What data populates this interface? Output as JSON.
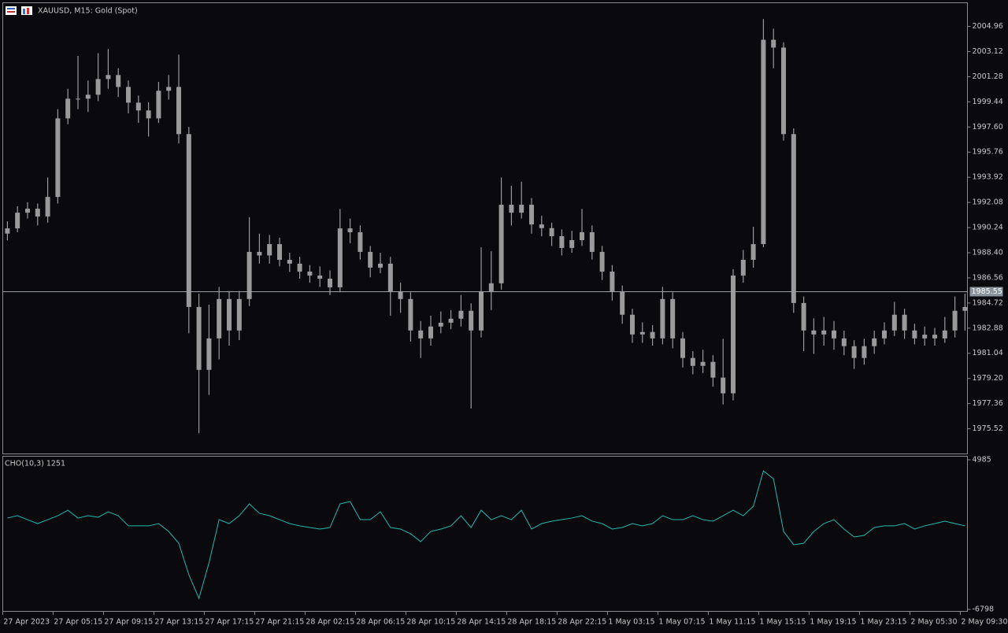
{
  "chart_data": [
    {
      "type": "candlestick",
      "title": "XAUUSD, M15:  Gold (Spot)",
      "color": "#9a9a9a",
      "categories": [
        "27 Apr 2023",
        null,
        null,
        null,
        null,
        "27 Apr 05:15",
        null,
        null,
        null,
        null,
        "27 Apr 09:15",
        null,
        null,
        null,
        null,
        "27 Apr 13:15",
        null,
        null,
        null,
        null,
        "27 Apr 17:15",
        null,
        null,
        null,
        null,
        "27 Apr 21:15",
        null,
        null,
        null,
        null,
        "28 Apr 02:15",
        null,
        null,
        null,
        null,
        "28 Apr 06:15",
        null,
        null,
        null,
        null,
        "28 Apr 10:15",
        null,
        null,
        null,
        null,
        "28 Apr 14:15",
        null,
        null,
        null,
        null,
        "28 Apr 18:15",
        null,
        null,
        null,
        null,
        "28 Apr 22:15",
        null,
        null,
        null,
        null,
        "1 May 03:15",
        null,
        null,
        null,
        null,
        "1 May 07:15",
        null,
        null,
        null,
        null,
        "1 May 11:15",
        null,
        null,
        null,
        null,
        "1 May 15:15",
        null,
        null,
        null,
        null,
        "1 May 19:15",
        null,
        null,
        null,
        null,
        "1 May 23:15",
        null,
        null,
        null,
        null,
        "2 May 05:30",
        null,
        null,
        null,
        null,
        "2 May 09:30"
      ],
      "open": [
        1989.8,
        1990.18,
        1991.33,
        1991.62,
        1991.05,
        1992.48,
        1998.23,
        1999.67,
        1999.67,
        1999.96,
        2001.11,
        2001.4,
        2000.53,
        1999.38,
        1998.81,
        1998.23,
        2000.25,
        2000.53,
        1997.08,
        1984.43,
        1979.83,
        1982.13,
        1985.01,
        1982.71,
        1985.01,
        1988.46,
        1988.2,
        1989.03,
        1987.88,
        1987.6,
        1987.02,
        1986.73,
        1986.5,
        1985.87,
        1990.18,
        1989.9,
        1988.46,
        1987.31,
        1987.6,
        1985.58,
        1985.01,
        1982.71,
        1982.13,
        1983.0,
        1983.28,
        1983.57,
        1984.15,
        1982.71,
        1985.58,
        1986.16,
        1991.91,
        1991.33,
        1991.91,
        1990.47,
        1990.2,
        1989.61,
        1988.75,
        1989.32,
        1989.9,
        1988.46,
        1987.02,
        1985.58,
        1983.86,
        1982.42,
        1982.6,
        1982.13,
        1985.01,
        1982.13,
        1980.7,
        1980.12,
        1980.41,
        1979.26,
        1978.11,
        1986.73,
        1987.88,
        1989.03,
        2003.98,
        2003.41,
        1997.08,
        1984.72,
        1982.71,
        1982.42,
        1982.71,
        1982.13,
        1981.56,
        1980.7,
        1981.56,
        1982.13,
        1982.71,
        1983.86,
        1982.71,
        1982.13,
        1982.4,
        1982.13,
        1982.71,
        1984.15
      ],
      "high": [
        1990.7,
        1991.8,
        1992.1,
        1992.0,
        1993.9,
        1998.9,
        2000.4,
        2002.8,
        2001.0,
        2003.0,
        2003.3,
        2001.9,
        2001.0,
        1999.9,
        1999.4,
        2000.9,
        2001.4,
        2002.9,
        1997.6,
        1985.4,
        1984.6,
        1985.9,
        1985.6,
        1985.6,
        1991.0,
        1989.8,
        1989.7,
        1989.5,
        1988.4,
        1988.1,
        1987.5,
        1987.4,
        1987.1,
        1991.6,
        1990.9,
        1990.4,
        1988.9,
        1988.4,
        1988.1,
        1986.2,
        1985.5,
        1983.4,
        1983.8,
        1984.1,
        1984.2,
        1985.3,
        1984.7,
        1988.8,
        1988.5,
        1993.9,
        1993.3,
        1993.6,
        1992.4,
        1991.1,
        1990.6,
        1990.1,
        1990.0,
        1991.6,
        1990.4,
        1988.9,
        1987.5,
        1986.0,
        1984.3,
        1983.3,
        1983.1,
        1985.9,
        1985.5,
        1982.6,
        1981.2,
        1981.3,
        1980.9,
        1982.1,
        1987.2,
        1988.6,
        1990.3,
        2005.5,
        2004.8,
        2003.8,
        1997.5,
        1985.2,
        1983.6,
        1983.7,
        1983.4,
        1982.7,
        1982.0,
        1982.1,
        1982.7,
        1983.3,
        1984.8,
        1984.3,
        1983.2,
        1983.0,
        1982.9,
        1983.7,
        1985.2,
        1985.4
      ],
      "low": [
        1989.3,
        1989.9,
        1990.9,
        1990.4,
        1990.6,
        1992.0,
        1997.8,
        1998.9,
        1998.7,
        1999.5,
        2000.4,
        1999.8,
        1998.6,
        1997.9,
        1996.9,
        1997.9,
        1999.6,
        1996.4,
        1982.5,
        1975.2,
        1978.0,
        1980.6,
        1981.6,
        1982.0,
        1984.5,
        1987.6,
        1987.6,
        1987.4,
        1987.0,
        1986.5,
        1986.2,
        1985.9,
        1985.3,
        1985.5,
        1989.1,
        1987.9,
        1986.6,
        1986.9,
        1983.8,
        1984.0,
        1981.9,
        1980.7,
        1981.6,
        1982.5,
        1982.8,
        1983.0,
        1977.0,
        1982.2,
        1984.2,
        1985.7,
        1990.4,
        1990.9,
        1989.8,
        1989.6,
        1988.9,
        1988.2,
        1988.4,
        1988.9,
        1987.9,
        1986.4,
        1984.9,
        1983.2,
        1981.8,
        1981.8,
        1981.6,
        1981.7,
        1981.4,
        1980.0,
        1979.5,
        1979.6,
        1978.6,
        1977.3,
        1977.6,
        1986.2,
        1987.3,
        1988.8,
        2001.9,
        1996.6,
        1984.0,
        1981.2,
        1981.0,
        1981.6,
        1981.3,
        1980.9,
        1979.9,
        1980.2,
        1981.0,
        1981.7,
        1982.3,
        1982.1,
        1981.7,
        1981.6,
        1981.6,
        1981.8,
        1982.2,
        1982.7
      ],
      "close": [
        1990.18,
        1991.33,
        1991.62,
        1991.05,
        1992.48,
        1998.23,
        1999.67,
        1999.67,
        1999.96,
        2001.11,
        2001.4,
        2000.53,
        1999.38,
        1998.81,
        1998.23,
        2000.25,
        2000.53,
        1997.08,
        1984.43,
        1979.83,
        1982.13,
        1985.01,
        1982.71,
        1985.01,
        1988.46,
        1988.2,
        1989.03,
        1987.88,
        1987.6,
        1987.02,
        1986.73,
        1986.5,
        1985.87,
        1990.18,
        1989.9,
        1988.46,
        1987.31,
        1987.6,
        1985.58,
        1985.01,
        1982.71,
        1982.13,
        1983.0,
        1983.28,
        1983.57,
        1984.15,
        1982.71,
        1985.58,
        1986.16,
        1991.91,
        1991.33,
        1991.91,
        1990.47,
        1990.2,
        1989.61,
        1988.75,
        1989.32,
        1989.9,
        1988.46,
        1987.02,
        1985.58,
        1983.86,
        1982.42,
        1982.6,
        1982.13,
        1985.01,
        1982.13,
        1980.7,
        1980.12,
        1980.41,
        1979.26,
        1978.11,
        1986.73,
        1987.88,
        1989.03,
        2003.98,
        2003.41,
        1997.08,
        1984.72,
        1982.71,
        1982.42,
        1982.71,
        1982.13,
        1981.56,
        1980.7,
        1981.56,
        1982.13,
        1982.71,
        1983.86,
        1982.71,
        1982.13,
        1982.4,
        1982.13,
        1982.71,
        1984.15,
        1984.43
      ],
      "current_price": 1985.55,
      "ylim": [
        1973.68,
        2006.69
      ],
      "yticks": [
        1975.52,
        1977.36,
        {
          "value": 1979.2,
          "label": "1979.20"
        },
        1981.04,
        1982.88,
        1984.72,
        1986.56,
        {
          "value": 1988.4,
          "label": "1988.40"
        },
        1990.24,
        1992.08,
        1993.92,
        1995.76,
        {
          "value": 1997.6,
          "label": "1997.60"
        },
        1999.44,
        2001.28,
        2003.12,
        2004.96
      ]
    },
    {
      "type": "line",
      "title": "CHO(10,3) 1251",
      "color": "#22b8b0",
      "values": [
        400,
        580,
        270,
        -40,
        270,
        580,
        1010,
        400,
        580,
        460,
        890,
        580,
        -220,
        -220,
        -220,
        -40,
        -660,
        -1590,
        -4070,
        -5930,
        -3140,
        270,
        -40,
        580,
        1510,
        770,
        580,
        270,
        -40,
        -220,
        -350,
        -470,
        -350,
        1510,
        1700,
        270,
        270,
        890,
        -350,
        -470,
        -840,
        -1460,
        -660,
        -470,
        -220,
        580,
        -350,
        1010,
        270,
        580,
        270,
        1010,
        -470,
        -40,
        150,
        270,
        400,
        580,
        150,
        -40,
        -470,
        -350,
        -40,
        -220,
        -40,
        580,
        270,
        270,
        580,
        270,
        150,
        580,
        1010,
        580,
        1320,
        4110,
        3490,
        -660,
        -1710,
        -1590,
        -660,
        -40,
        270,
        -470,
        -1090,
        -970,
        -350,
        -220,
        -220,
        -40,
        -470,
        -220,
        -40,
        150,
        -40,
        -220
      ],
      "ylim": [
        -6798,
        4985
      ],
      "yticks": [
        4985,
        -6798
      ]
    }
  ]
}
